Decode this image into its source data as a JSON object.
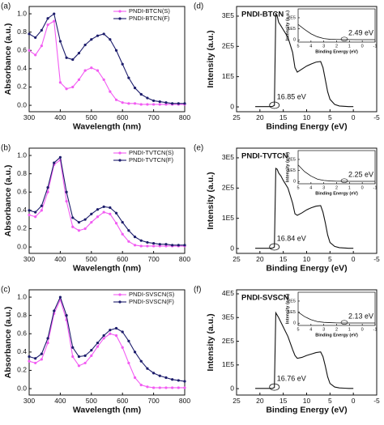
{
  "chart_data": [
    {
      "type": "line",
      "panel": "(a)",
      "xlabel": "Wavelength (nm)",
      "ylabel": "Absorbance (a.u.)",
      "legend": "upper right",
      "xlim": [
        300,
        800
      ],
      "xticks": [
        300,
        400,
        500,
        600,
        700,
        800
      ],
      "ylim": [
        -0.07,
        1.08
      ],
      "yticks": [
        {
          "value": 0,
          "label": "0.0"
        },
        {
          "value": 0.2,
          "label": "0.2"
        },
        {
          "value": 0.4,
          "label": "0.4"
        },
        {
          "value": 0.6,
          "label": "0.6"
        },
        {
          "value": 0.8,
          "label": "0.8"
        },
        {
          "value": 1,
          "label": "1.0"
        }
      ],
      "x": [
        300,
        320,
        340,
        360,
        380,
        400,
        420,
        440,
        460,
        480,
        500,
        520,
        540,
        560,
        580,
        600,
        620,
        640,
        660,
        680,
        700,
        720,
        740,
        760,
        780,
        800
      ],
      "series": [
        {
          "name": "PNDI-BTCN(S)",
          "color": "#f25cf2",
          "values": [
            0.6,
            0.55,
            0.65,
            0.88,
            0.92,
            0.25,
            0.18,
            0.2,
            0.28,
            0.38,
            0.41,
            0.38,
            0.28,
            0.15,
            0.06,
            0.03,
            0.02,
            0.02,
            0.01,
            0.01,
            0.01,
            0.01,
            0.01,
            0.01,
            0.01,
            0.01
          ]
        },
        {
          "name": "PNDI-BTCN(F)",
          "color": "#1c1c6b",
          "values": [
            0.78,
            0.74,
            0.82,
            0.95,
            1.0,
            0.7,
            0.52,
            0.5,
            0.57,
            0.66,
            0.72,
            0.76,
            0.78,
            0.72,
            0.6,
            0.45,
            0.3,
            0.19,
            0.12,
            0.08,
            0.05,
            0.04,
            0.03,
            0.02,
            0.02,
            0.02
          ]
        }
      ]
    },
    {
      "type": "line",
      "panel": "(b)",
      "xlabel": "Wavelength (nm)",
      "ylabel": "Absorbance (a.u.)",
      "legend": "upper right",
      "xlim": [
        300,
        800
      ],
      "xticks": [
        300,
        400,
        500,
        600,
        700,
        800
      ],
      "ylim": [
        -0.07,
        1.08
      ],
      "yticks": [
        {
          "value": 0,
          "label": "0.0"
        },
        {
          "value": 0.2,
          "label": "0.2"
        },
        {
          "value": 0.4,
          "label": "0.4"
        },
        {
          "value": 0.6,
          "label": "0.6"
        },
        {
          "value": 0.8,
          "label": "0.8"
        },
        {
          "value": 1,
          "label": "1.0"
        }
      ],
      "x": [
        300,
        320,
        340,
        360,
        380,
        400,
        420,
        440,
        460,
        480,
        500,
        520,
        540,
        560,
        580,
        600,
        620,
        640,
        660,
        680,
        700,
        720,
        740,
        760,
        780,
        800
      ],
      "series": [
        {
          "name": "PNDI-TVTCN(S)",
          "color": "#f25cf2",
          "values": [
            0.35,
            0.33,
            0.4,
            0.6,
            0.9,
            0.95,
            0.5,
            0.22,
            0.18,
            0.2,
            0.27,
            0.33,
            0.38,
            0.36,
            0.26,
            0.14,
            0.06,
            0.02,
            0.01,
            0.01,
            0.01,
            0.01,
            0.01,
            0.01,
            0.01,
            0.01
          ]
        },
        {
          "name": "PNDI-TVTCN(F)",
          "color": "#1c1c6b",
          "values": [
            0.4,
            0.38,
            0.45,
            0.65,
            0.92,
            0.98,
            0.6,
            0.32,
            0.27,
            0.3,
            0.36,
            0.41,
            0.44,
            0.43,
            0.37,
            0.27,
            0.18,
            0.11,
            0.07,
            0.05,
            0.04,
            0.03,
            0.03,
            0.02,
            0.02,
            0.02
          ]
        }
      ]
    },
    {
      "type": "line",
      "panel": "(c)",
      "xlabel": "Wavelength (nm)",
      "ylabel": "Absorbance (a.u.)",
      "legend": "upper right",
      "xlim": [
        300,
        800
      ],
      "xticks": [
        300,
        400,
        500,
        600,
        700,
        800
      ],
      "ylim": [
        -0.07,
        1.08
      ],
      "yticks": [
        {
          "value": 0,
          "label": "0.0"
        },
        {
          "value": 0.2,
          "label": "0.2"
        },
        {
          "value": 0.4,
          "label": "0.4"
        },
        {
          "value": 0.6,
          "label": "0.6"
        },
        {
          "value": 0.8,
          "label": "0.8"
        },
        {
          "value": 1,
          "label": "1.0"
        }
      ],
      "x": [
        300,
        320,
        340,
        360,
        380,
        400,
        420,
        440,
        460,
        480,
        500,
        520,
        540,
        560,
        580,
        600,
        620,
        640,
        660,
        680,
        700,
        720,
        740,
        760,
        780,
        800
      ],
      "series": [
        {
          "name": "PNDI-SVSCN(S)",
          "color": "#f25cf2",
          "values": [
            0.3,
            0.28,
            0.32,
            0.5,
            0.82,
            0.97,
            0.75,
            0.35,
            0.25,
            0.28,
            0.36,
            0.46,
            0.55,
            0.6,
            0.58,
            0.45,
            0.28,
            0.12,
            0.04,
            0.02,
            0.01,
            0.01,
            0.01,
            0.01,
            0.01,
            0.01
          ]
        },
        {
          "name": "PNDI-SVSCN(F)",
          "color": "#1c1c6b",
          "values": [
            0.35,
            0.33,
            0.38,
            0.55,
            0.85,
            1.0,
            0.8,
            0.45,
            0.35,
            0.36,
            0.42,
            0.5,
            0.58,
            0.64,
            0.66,
            0.62,
            0.52,
            0.4,
            0.3,
            0.22,
            0.17,
            0.14,
            0.12,
            0.1,
            0.09,
            0.08
          ]
        }
      ]
    },
    {
      "type": "line",
      "panel": "(d)",
      "title": "PNDI-BTCN",
      "annotation": "16.85 eV",
      "xlabel": "Binding Energy (eV)",
      "ylabel": "Intensity (a.u.)",
      "xlim": [
        25,
        -5
      ],
      "xticks": [
        25,
        20,
        15,
        10,
        5,
        0,
        -5
      ],
      "ylim": [
        -16000,
        332000
      ],
      "yticks": [
        0,
        {
          "value": 100000,
          "label": "1E5"
        },
        {
          "value": 200000,
          "label": "2E5"
        },
        {
          "value": 300000,
          "label": "3E5"
        }
      ],
      "x": [
        21,
        20,
        19,
        18,
        17.3,
        16.9,
        16.6,
        16.3,
        16,
        15.5,
        15,
        14,
        13,
        12.5,
        12,
        11,
        10,
        9,
        8,
        7,
        6.5,
        6,
        5.5,
        5,
        4,
        3,
        2,
        1,
        0
      ],
      "series": [
        {
          "color": "#111111",
          "values": [
            1000,
            1000,
            1000,
            1000,
            1500,
            5000,
            310000,
            300000,
            280000,
            268000,
            255000,
            230000,
            180000,
            130000,
            115000,
            125000,
            135000,
            142000,
            148000,
            150000,
            130000,
            90000,
            50000,
            25000,
            8000,
            3000,
            2000,
            1000,
            1000
          ]
        }
      ],
      "inset": {
        "type": "line",
        "annotation": "2.49 eV",
        "xlabel": "Binding Energy (eV)",
        "ylabel": "Intensity (a.u.)",
        "xlim": [
          5,
          -1
        ],
        "xticks": [
          5,
          4,
          3,
          2,
          1,
          0,
          -1
        ],
        "ylim": [
          -20000,
          280000
        ],
        "yticks": [
          0,
          {
            "value": 100000,
            "label": "1E5"
          },
          {
            "value": 200000,
            "label": "2E5"
          }
        ],
        "x": [
          5,
          4.5,
          4,
          3.5,
          3,
          2.5,
          2,
          1.5,
          1,
          0.5,
          0,
          -0.5,
          -1
        ],
        "series": [
          {
            "color": "#111111",
            "values": [
              140000,
              95000,
              55000,
              28000,
              12000,
              5000,
              4000,
              3000,
              3000,
              2000,
              2000,
              2000,
              2000
            ]
          }
        ]
      }
    },
    {
      "type": "line",
      "panel": "(e)",
      "title": "PNDI-TVTCN",
      "annotation": "16.84 eV",
      "xlabel": "Binding Energy (eV)",
      "ylabel": "Intensity (a.u.)",
      "xlim": [
        25,
        -5
      ],
      "xticks": [
        25,
        20,
        15,
        10,
        5,
        0,
        -5
      ],
      "ylim": [
        -16000,
        332000
      ],
      "yticks": [
        0,
        {
          "value": 100000,
          "label": "1E5"
        },
        {
          "value": 200000,
          "label": "2E5"
        },
        {
          "value": 300000,
          "label": "3E5"
        }
      ],
      "x": [
        21,
        20,
        19,
        18,
        17.3,
        16.9,
        16.6,
        16.3,
        16,
        15.5,
        15,
        14,
        13,
        12.5,
        12,
        11,
        10,
        9,
        8,
        7,
        6.5,
        6,
        5.5,
        5,
        4,
        3,
        2,
        1,
        0
      ],
      "series": [
        {
          "color": "#111111",
          "values": [
            1000,
            1000,
            1000,
            1000,
            1500,
            5000,
            265000,
            262000,
            250000,
            240000,
            225000,
            200000,
            150000,
            115000,
            110000,
            118000,
            128000,
            135000,
            140000,
            142000,
            120000,
            85000,
            45000,
            20000,
            7000,
            3000,
            2000,
            1000,
            1000
          ]
        }
      ],
      "inset": {
        "type": "line",
        "annotation": "2.25 eV",
        "xlabel": "Binding Energy (eV)",
        "ylabel": "Intensity (a.u.)",
        "xlim": [
          5,
          -1
        ],
        "xticks": [
          5,
          4,
          3,
          2,
          1,
          0,
          -1
        ],
        "ylim": [
          -20000,
          280000
        ],
        "yticks": [
          0,
          {
            "value": 100000,
            "label": "1E5"
          },
          {
            "value": 200000,
            "label": "2E5"
          }
        ],
        "x": [
          5,
          4.5,
          4,
          3.5,
          3,
          2.5,
          2,
          1.5,
          1,
          0.5,
          0,
          -0.5,
          -1
        ],
        "series": [
          {
            "color": "#111111",
            "values": [
              150000,
              90000,
              50000,
              22000,
              10000,
              5000,
              3000,
              3000,
              2000,
              2000,
              2000,
              2000,
              2000
            ]
          }
        ]
      }
    },
    {
      "type": "line",
      "panel": "(f)",
      "title": "PNDI-SVSCN",
      "annotation": "16.76 eV",
      "xlabel": "Binding Energy (eV)",
      "ylabel": "Intensity (a.u.)",
      "xlim": [
        25,
        -5
      ],
      "xticks": [
        25,
        20,
        15,
        10,
        5,
        0,
        -5
      ],
      "ylim": [
        -27000,
        417000
      ],
      "yticks": [
        0,
        {
          "value": 100000,
          "label": "1E5"
        },
        {
          "value": 200000,
          "label": "2E5"
        },
        {
          "value": 300000,
          "label": "3E5"
        },
        {
          "value": 400000,
          "label": "4E5"
        }
      ],
      "x": [
        21,
        20,
        19,
        18,
        17.3,
        16.9,
        16.6,
        16.3,
        16,
        15.5,
        15,
        14,
        13,
        12.5,
        12,
        11,
        10,
        9,
        8,
        7,
        6.5,
        6,
        5.5,
        5,
        4,
        3,
        2,
        1,
        0
      ],
      "series": [
        {
          "color": "#111111",
          "values": [
            1000,
            1000,
            1000,
            1000,
            1500,
            5000,
            320000,
            310000,
            300000,
            280000,
            260000,
            220000,
            165000,
            140000,
            128000,
            132000,
            140000,
            146000,
            152000,
            155000,
            135000,
            95000,
            50000,
            22000,
            7000,
            3000,
            2000,
            1000,
            1000
          ]
        }
      ],
      "inset": {
        "type": "line",
        "annotation": "2.13 eV",
        "xlabel": "Binding Energy (eV)",
        "ylabel": "Intensity (a.u.)",
        "xlim": [
          5,
          -1
        ],
        "xticks": [
          5,
          4,
          3,
          2,
          1,
          0,
          -1
        ],
        "ylim": [
          -20000,
          280000
        ],
        "yticks": [
          0,
          {
            "value": 100000,
            "label": "1E5"
          },
          {
            "value": 200000,
            "label": "2E5"
          }
        ],
        "x": [
          5,
          4.5,
          4,
          3.5,
          3,
          2.5,
          2,
          1.5,
          1,
          0.5,
          0,
          -0.5,
          -1
        ],
        "series": [
          {
            "color": "#111111",
            "values": [
              100000,
              60000,
              32000,
              15000,
              8000,
              5000,
              3000,
              2000,
              2000,
              2000,
              2000,
              2000,
              2000
            ]
          }
        ]
      }
    }
  ]
}
